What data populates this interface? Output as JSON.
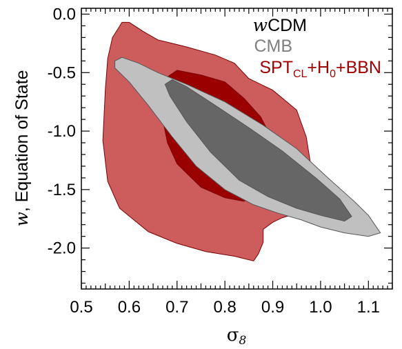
{
  "chart_data": {
    "type": "contour",
    "title": "",
    "xlabel": "σ",
    "xlabel_subscript": "8",
    "ylabel_italic": "w",
    "ylabel": ", Equation of State",
    "xlim": [
      0.5,
      1.15
    ],
    "ylim": [
      -2.35,
      0.05
    ],
    "x_ticks": [
      0.5,
      0.6,
      0.7,
      0.8,
      0.9,
      1.0,
      1.1
    ],
    "x_tick_labels": [
      "0.5",
      "0.6",
      "0.7",
      "0.8",
      "0.9",
      "1.0",
      "1.1"
    ],
    "y_ticks": [
      0.0,
      -0.5,
      -1.0,
      -1.5,
      -2.0
    ],
    "y_tick_labels": [
      "0.0",
      "-0.5",
      "-1.0",
      "-1.5",
      "-2.0"
    ],
    "legend": {
      "placement": "top-right",
      "title_italic": "w",
      "title_rest": "CDM",
      "entries": [
        {
          "label": "CMB",
          "color": "#7f7f7f"
        },
        {
          "label_main": "SPT",
          "label_sub": "CL",
          "label_mid": "+H",
          "label_sub2": "0",
          "label_end": "+BBN",
          "color": "#a00000"
        }
      ]
    },
    "series": [
      {
        "name": "SPT_CL+H0+BBN",
        "level": "95%",
        "color": "#cd5c5c",
        "contour": [
          [
            0.585,
            -0.07
          ],
          [
            0.6,
            -0.07
          ],
          [
            0.63,
            -0.15
          ],
          [
            0.66,
            -0.22
          ],
          [
            0.72,
            -0.28
          ],
          [
            0.78,
            -0.35
          ],
          [
            0.82,
            -0.42
          ],
          [
            0.85,
            -0.55
          ],
          [
            0.9,
            -0.65
          ],
          [
            0.95,
            -0.82
          ],
          [
            0.97,
            -1.05
          ],
          [
            0.98,
            -1.3
          ],
          [
            0.99,
            -1.55
          ],
          [
            0.97,
            -1.68
          ],
          [
            0.92,
            -1.74
          ],
          [
            0.9,
            -1.78
          ],
          [
            0.88,
            -1.84
          ],
          [
            0.88,
            -1.95
          ],
          [
            0.87,
            -2.05
          ],
          [
            0.86,
            -2.11
          ],
          [
            0.82,
            -2.07
          ],
          [
            0.76,
            -2.03
          ],
          [
            0.7,
            -1.96
          ],
          [
            0.64,
            -1.86
          ],
          [
            0.58,
            -1.66
          ],
          [
            0.555,
            -1.43
          ],
          [
            0.545,
            -1.08
          ],
          [
            0.55,
            -0.65
          ],
          [
            0.555,
            -0.38
          ],
          [
            0.565,
            -0.2
          ]
        ]
      },
      {
        "name": "SPT_CL+H0+BBN",
        "level": "68%",
        "color": "#9b0000",
        "contour": [
          [
            0.675,
            -0.55
          ],
          [
            0.7,
            -0.48
          ],
          [
            0.75,
            -0.52
          ],
          [
            0.8,
            -0.58
          ],
          [
            0.84,
            -0.72
          ],
          [
            0.875,
            -0.88
          ],
          [
            0.9,
            -1.08
          ],
          [
            0.91,
            -1.3
          ],
          [
            0.9,
            -1.42
          ],
          [
            0.875,
            -1.52
          ],
          [
            0.84,
            -1.6
          ],
          [
            0.8,
            -1.57
          ],
          [
            0.75,
            -1.48
          ],
          [
            0.7,
            -1.28
          ],
          [
            0.68,
            -1.1
          ],
          [
            0.67,
            -0.9
          ],
          [
            0.67,
            -0.7
          ]
        ]
      },
      {
        "name": "CMB",
        "level": "95%",
        "color": "#c0c0c0",
        "contour": [
          [
            0.57,
            -0.4
          ],
          [
            0.585,
            -0.37
          ],
          [
            0.62,
            -0.42
          ],
          [
            0.66,
            -0.5
          ],
          [
            0.72,
            -0.6
          ],
          [
            0.8,
            -0.75
          ],
          [
            0.88,
            -0.95
          ],
          [
            0.95,
            -1.15
          ],
          [
            1.01,
            -1.38
          ],
          [
            1.07,
            -1.6
          ],
          [
            1.1,
            -1.72
          ],
          [
            1.125,
            -1.87
          ],
          [
            1.1,
            -1.9
          ],
          [
            1.05,
            -1.87
          ],
          [
            1.0,
            -1.82
          ],
          [
            0.96,
            -1.76
          ],
          [
            0.91,
            -1.7
          ],
          [
            0.86,
            -1.63
          ],
          [
            0.8,
            -1.5
          ],
          [
            0.74,
            -1.3
          ],
          [
            0.69,
            -1.05
          ],
          [
            0.64,
            -0.78
          ],
          [
            0.6,
            -0.58
          ],
          [
            0.57,
            -0.46
          ]
        ]
      },
      {
        "name": "CMB",
        "level": "68%",
        "color": "#666666",
        "contour": [
          [
            0.675,
            -0.6
          ],
          [
            0.69,
            -0.56
          ],
          [
            0.72,
            -0.62
          ],
          [
            0.78,
            -0.78
          ],
          [
            0.85,
            -0.97
          ],
          [
            0.92,
            -1.17
          ],
          [
            0.99,
            -1.4
          ],
          [
            1.04,
            -1.58
          ],
          [
            1.065,
            -1.73
          ],
          [
            1.05,
            -1.77
          ],
          [
            1.0,
            -1.72
          ],
          [
            0.95,
            -1.66
          ],
          [
            0.89,
            -1.56
          ],
          [
            0.83,
            -1.42
          ],
          [
            0.77,
            -1.18
          ],
          [
            0.72,
            -0.92
          ],
          [
            0.685,
            -0.7
          ]
        ]
      }
    ]
  }
}
